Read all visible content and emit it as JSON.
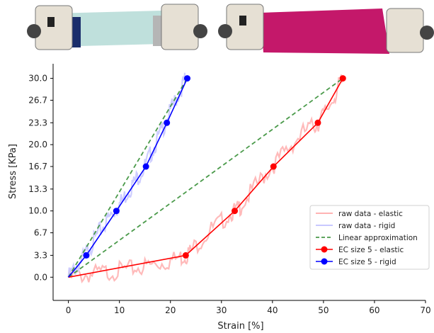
{
  "chart_data": {
    "type": "line",
    "xlabel": "Strain [%]",
    "ylabel": "Stress [KPa]",
    "xlim": [
      -3,
      70
    ],
    "ylim": [
      -3.5,
      32.2
    ],
    "x_ticks": [
      0,
      10,
      20,
      30,
      40,
      50,
      60,
      70
    ],
    "y_ticks": [
      "0.0",
      "3.3",
      "6.7",
      "10.0",
      "13.3",
      "16.7",
      "20.0",
      "23.3",
      "26.7",
      "30.0"
    ],
    "grid": false,
    "legend_placement": "lower-right",
    "series": [
      {
        "name": "raw data - elastic",
        "kind": "raw",
        "color": "#ffb3b3",
        "x": [
          0,
          2,
          4,
          6,
          8,
          10,
          12,
          14,
          16,
          18,
          20,
          22,
          23,
          24,
          26,
          28,
          30,
          32,
          33,
          34,
          36,
          38,
          40,
          42,
          44,
          46,
          48,
          49,
          50,
          52,
          53,
          54
        ],
        "y": [
          0,
          0.2,
          0.4,
          0.6,
          0.8,
          1.0,
          1.2,
          1.5,
          1.8,
          2.1,
          2.5,
          3.0,
          3.3,
          4.0,
          5.6,
          7.2,
          8.4,
          9.8,
          10.0,
          11.0,
          13.0,
          15.0,
          16.7,
          18.5,
          20.2,
          21.8,
          22.8,
          23.3,
          24.5,
          27.0,
          28.8,
          30.0
        ]
      },
      {
        "name": "raw data - rigid",
        "kind": "raw",
        "color": "#c8c8ff",
        "x": [
          0,
          1,
          2,
          3.3,
          4,
          5,
          6,
          7,
          8,
          9,
          10,
          11,
          12,
          13,
          14,
          15,
          16,
          17,
          18,
          19,
          20,
          21,
          22,
          23
        ],
        "y": [
          0,
          1.0,
          2.0,
          3.3,
          4.3,
          5.5,
          6.8,
          7.9,
          9.0,
          10.0,
          11.0,
          12.1,
          13.3,
          14.4,
          15.6,
          16.7,
          18.4,
          20.0,
          21.6,
          23.3,
          25.0,
          26.7,
          28.3,
          30.0
        ]
      },
      {
        "name": "Linear approximation",
        "kind": "linear",
        "color": "#4a9a4a",
        "segments": [
          {
            "x": [
              0,
              23.3
            ],
            "y": [
              0,
              30.0
            ]
          },
          {
            "x": [
              0,
              53.8
            ],
            "y": [
              0,
              30.0
            ]
          }
        ]
      },
      {
        "name": "EC size 5 - elastic",
        "kind": "markers",
        "color": "#ff0000",
        "x": [
          0,
          23.0,
          32.6,
          40.2,
          48.9,
          53.8
        ],
        "y": [
          0,
          3.3,
          10.0,
          16.7,
          23.3,
          30.0
        ]
      },
      {
        "name": "EC size 5 - rigid",
        "kind": "markers",
        "color": "#0000ff",
        "x": [
          0,
          3.5,
          9.4,
          15.2,
          19.3,
          23.3
        ],
        "y": [
          0,
          3.3,
          10.0,
          16.7,
          23.3,
          30.0
        ]
      }
    ]
  },
  "photos": [
    {
      "name": "rigid-sample-photo",
      "fabric_color": "#bfe0dc"
    },
    {
      "name": "elastic-sample-photo",
      "fabric_color": "#c4186a"
    }
  ]
}
